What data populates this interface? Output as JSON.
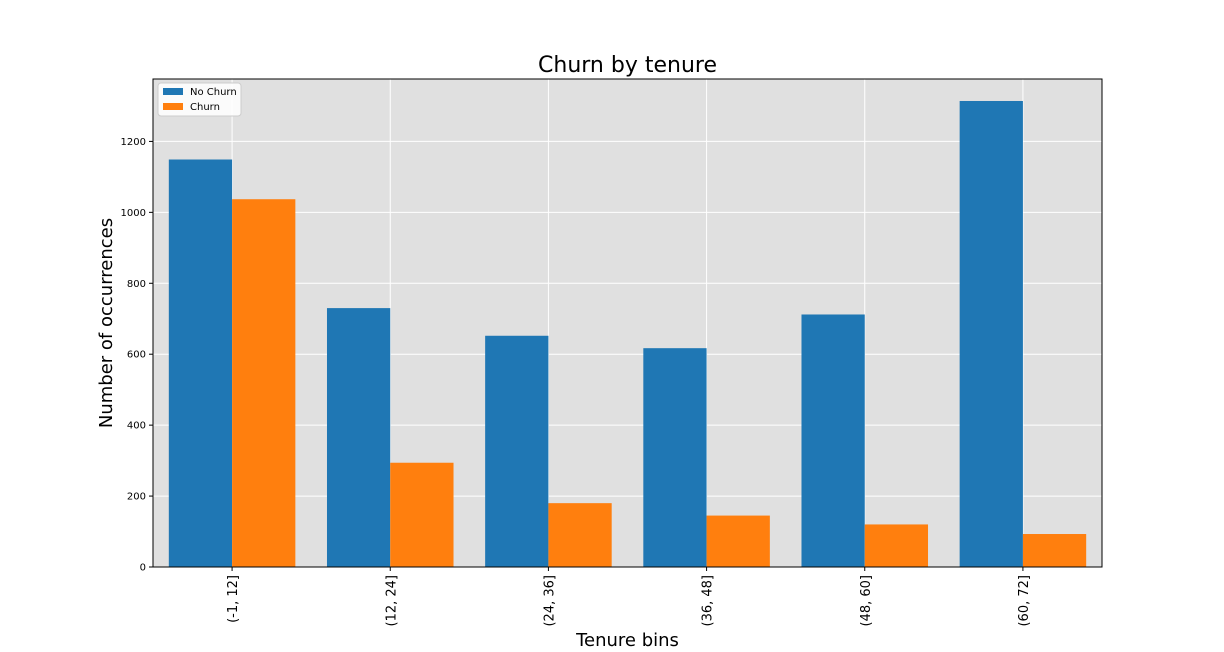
{
  "chart_data": {
    "type": "bar",
    "title": "Churn by tenure",
    "xlabel": "Tenure bins",
    "ylabel": "Number of occurrences",
    "categories": [
      "(-1, 12]",
      "(12, 24]",
      "(24, 36]",
      "(36, 48]",
      "(48, 60]",
      "(60, 72]"
    ],
    "series": [
      {
        "name": "No Churn",
        "color": "#1f77b4",
        "values": [
          1149,
          730,
          652,
          617,
          712,
          1314
        ]
      },
      {
        "name": "Churn",
        "color": "#ff7f0e",
        "values": [
          1037,
          294,
          180,
          145,
          120,
          93
        ]
      }
    ],
    "ylim": [
      0,
      1376
    ],
    "yticks": [
      0,
      200,
      400,
      600,
      800,
      1000,
      1200
    ],
    "grid": true,
    "legend_position": "top-left",
    "plot_background": "#e0e0e0",
    "grid_color": "#ffffff"
  }
}
